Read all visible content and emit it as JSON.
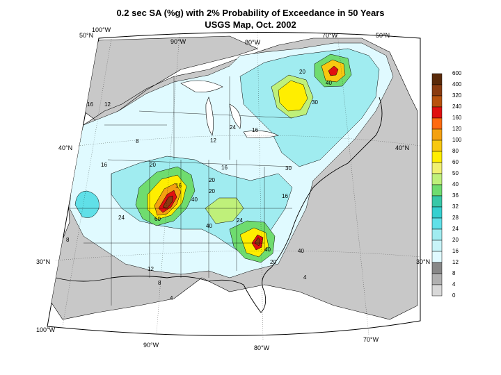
{
  "title": {
    "line1": "0.2 sec SA (%g) with 2% Probability of Exceedance in 50 Years",
    "line2": "USGS Map, Oct. 2002"
  },
  "graticule": {
    "lon_top": [
      "100°W",
      "90°W",
      "80°W",
      "70°W"
    ],
    "lon_bottom": [
      "100°W",
      "90°W",
      "80°W",
      "70°W"
    ],
    "lat_left": [
      "50°N",
      "40°N",
      "30°N"
    ],
    "lat_right": [
      "50°N",
      "40°N",
      "30°N"
    ]
  },
  "legend": {
    "values": [
      "600",
      "400",
      "320",
      "240",
      "160",
      "120",
      "100",
      "80",
      "60",
      "50",
      "40",
      "36",
      "32",
      "28",
      "24",
      "20",
      "16",
      "12",
      "8",
      "4",
      "0"
    ],
    "colors": [
      "#5a2a0a",
      "#8a3b10",
      "#b8520e",
      "#e01010",
      "#ff6a10",
      "#f4a010",
      "#f8c810",
      "#ffee00",
      "#f0f070",
      "#bff07a",
      "#6fdc6f",
      "#38c8a8",
      "#35d0d0",
      "#60e0e8",
      "#a0ecf0",
      "#c8f4f8",
      "#e0faff",
      "#888888",
      "#b0b0b0",
      "#d8d8d8",
      "#ffffff"
    ]
  },
  "contour_labels": [
    "8",
    "12",
    "16",
    "20",
    "24",
    "30",
    "40",
    "40",
    "16",
    "20",
    "12",
    "16",
    "16",
    "8",
    "24",
    "16",
    "30",
    "20",
    "16",
    "24",
    "40",
    "40",
    "60",
    "12",
    "8",
    "20",
    "40",
    "4",
    "4",
    "20"
  ]
}
